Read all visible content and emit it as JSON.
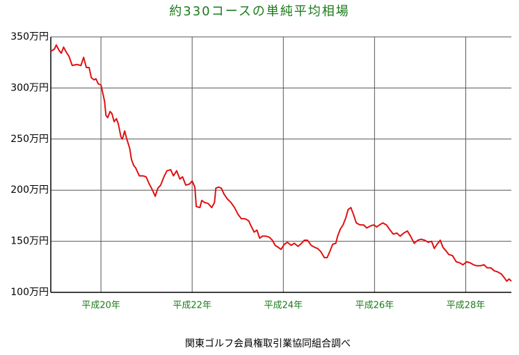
{
  "chart_data": {
    "type": "line",
    "title": "約330コースの単純平均相場",
    "source": "関東ゴルフ会員権取引業協同組合調べ",
    "x": [
      18.9,
      18.98,
      19.02,
      19.08,
      19.13,
      19.18,
      19.24,
      19.3,
      19.37,
      19.47,
      19.56,
      19.62,
      19.68,
      19.74,
      19.79,
      19.85,
      19.89,
      19.94,
      20.0,
      20.03,
      20.08,
      20.11,
      20.15,
      20.2,
      20.24,
      20.29,
      20.34,
      20.38,
      20.44,
      20.47,
      20.52,
      20.56,
      20.63,
      20.67,
      20.72,
      20.76,
      20.84,
      20.92,
      20.99,
      21.05,
      21.13,
      21.19,
      21.25,
      21.31,
      21.39,
      21.45,
      21.53,
      21.59,
      21.66,
      21.73,
      21.79,
      21.86,
      21.94,
      22.0,
      22.06,
      22.09,
      22.17,
      22.21,
      22.27,
      22.35,
      22.43,
      22.49,
      22.52,
      22.58,
      22.64,
      22.7,
      22.78,
      22.85,
      22.93,
      23.01,
      23.08,
      23.16,
      23.24,
      23.28,
      23.36,
      23.42,
      23.48,
      23.54,
      23.62,
      23.69,
      23.76,
      23.82,
      23.89,
      23.95,
      24.02,
      24.09,
      24.17,
      24.24,
      24.32,
      24.4,
      24.46,
      24.53,
      24.61,
      24.69,
      24.75,
      24.82,
      24.9,
      24.96,
      25.02,
      25.08,
      25.15,
      25.19,
      25.25,
      25.31,
      25.37,
      25.42,
      25.48,
      25.54,
      25.6,
      25.68,
      25.76,
      25.83,
      25.91,
      25.98,
      26.05,
      26.11,
      26.18,
      26.26,
      26.34,
      26.41,
      26.49,
      26.56,
      26.64,
      26.72,
      26.79,
      26.87,
      26.95,
      27.02,
      27.1,
      27.18,
      27.25,
      27.31,
      27.37,
      27.44,
      27.5,
      27.56,
      27.63,
      27.71,
      27.79,
      27.86,
      27.94,
      28.02,
      28.09,
      28.17,
      28.24,
      28.32,
      28.4,
      28.47,
      28.55,
      28.63,
      28.7,
      28.78,
      28.85,
      28.9,
      28.95,
      29.0
    ],
    "series": [
      {
        "name": "単純平均相場",
        "color": "#e01010",
        "values": [
          336,
          338,
          342,
          337,
          334,
          340,
          335,
          331,
          322,
          323,
          322,
          330,
          320,
          320,
          310,
          308,
          309,
          304,
          303,
          297,
          287,
          273,
          271,
          277,
          275,
          267,
          270,
          265,
          252,
          250,
          258,
          251,
          241,
          230,
          224,
          222,
          214,
          214,
          213,
          207,
          200,
          194,
          202,
          205,
          214,
          219,
          220,
          214,
          219,
          211,
          213,
          205,
          206,
          209,
          203,
          184,
          183,
          190,
          188,
          187,
          183,
          188,
          202,
          203,
          202,
          196,
          191,
          188,
          183,
          176,
          172,
          172,
          170,
          166,
          159,
          161,
          153,
          155,
          155,
          154,
          151,
          146,
          144,
          142,
          147,
          149,
          146,
          148,
          145,
          148,
          151,
          151,
          146,
          144,
          143,
          140,
          134,
          134,
          140,
          147,
          148,
          155,
          162,
          166,
          173,
          181,
          183,
          176,
          168,
          166,
          166,
          163,
          165,
          166,
          164,
          166,
          168,
          166,
          161,
          157,
          158,
          155,
          158,
          160,
          155,
          148,
          151,
          152,
          151,
          149,
          150,
          143,
          147,
          151,
          144,
          141,
          137,
          136,
          130,
          129,
          127,
          130,
          129,
          127,
          126,
          126,
          127,
          124,
          124,
          121,
          120,
          118,
          114,
          111,
          113,
          111
        ]
      }
    ],
    "xlim": [
      18.9,
      29.0
    ],
    "ylim": [
      100,
      350
    ],
    "xticks": [
      {
        "value": 20,
        "label": "平成20年"
      },
      {
        "value": 22,
        "label": "平成22年"
      },
      {
        "value": 24,
        "label": "平成24年"
      },
      {
        "value": 26,
        "label": "平成26年"
      },
      {
        "value": 28,
        "label": "平成28年"
      }
    ],
    "yticks": [
      {
        "value": 100,
        "label": "100万円"
      },
      {
        "value": 150,
        "label": "150万円"
      },
      {
        "value": 200,
        "label": "200万円"
      },
      {
        "value": 250,
        "label": "250万円"
      },
      {
        "value": 300,
        "label": "300万円"
      },
      {
        "value": 350,
        "label": "350万円"
      }
    ],
    "grid": true
  }
}
